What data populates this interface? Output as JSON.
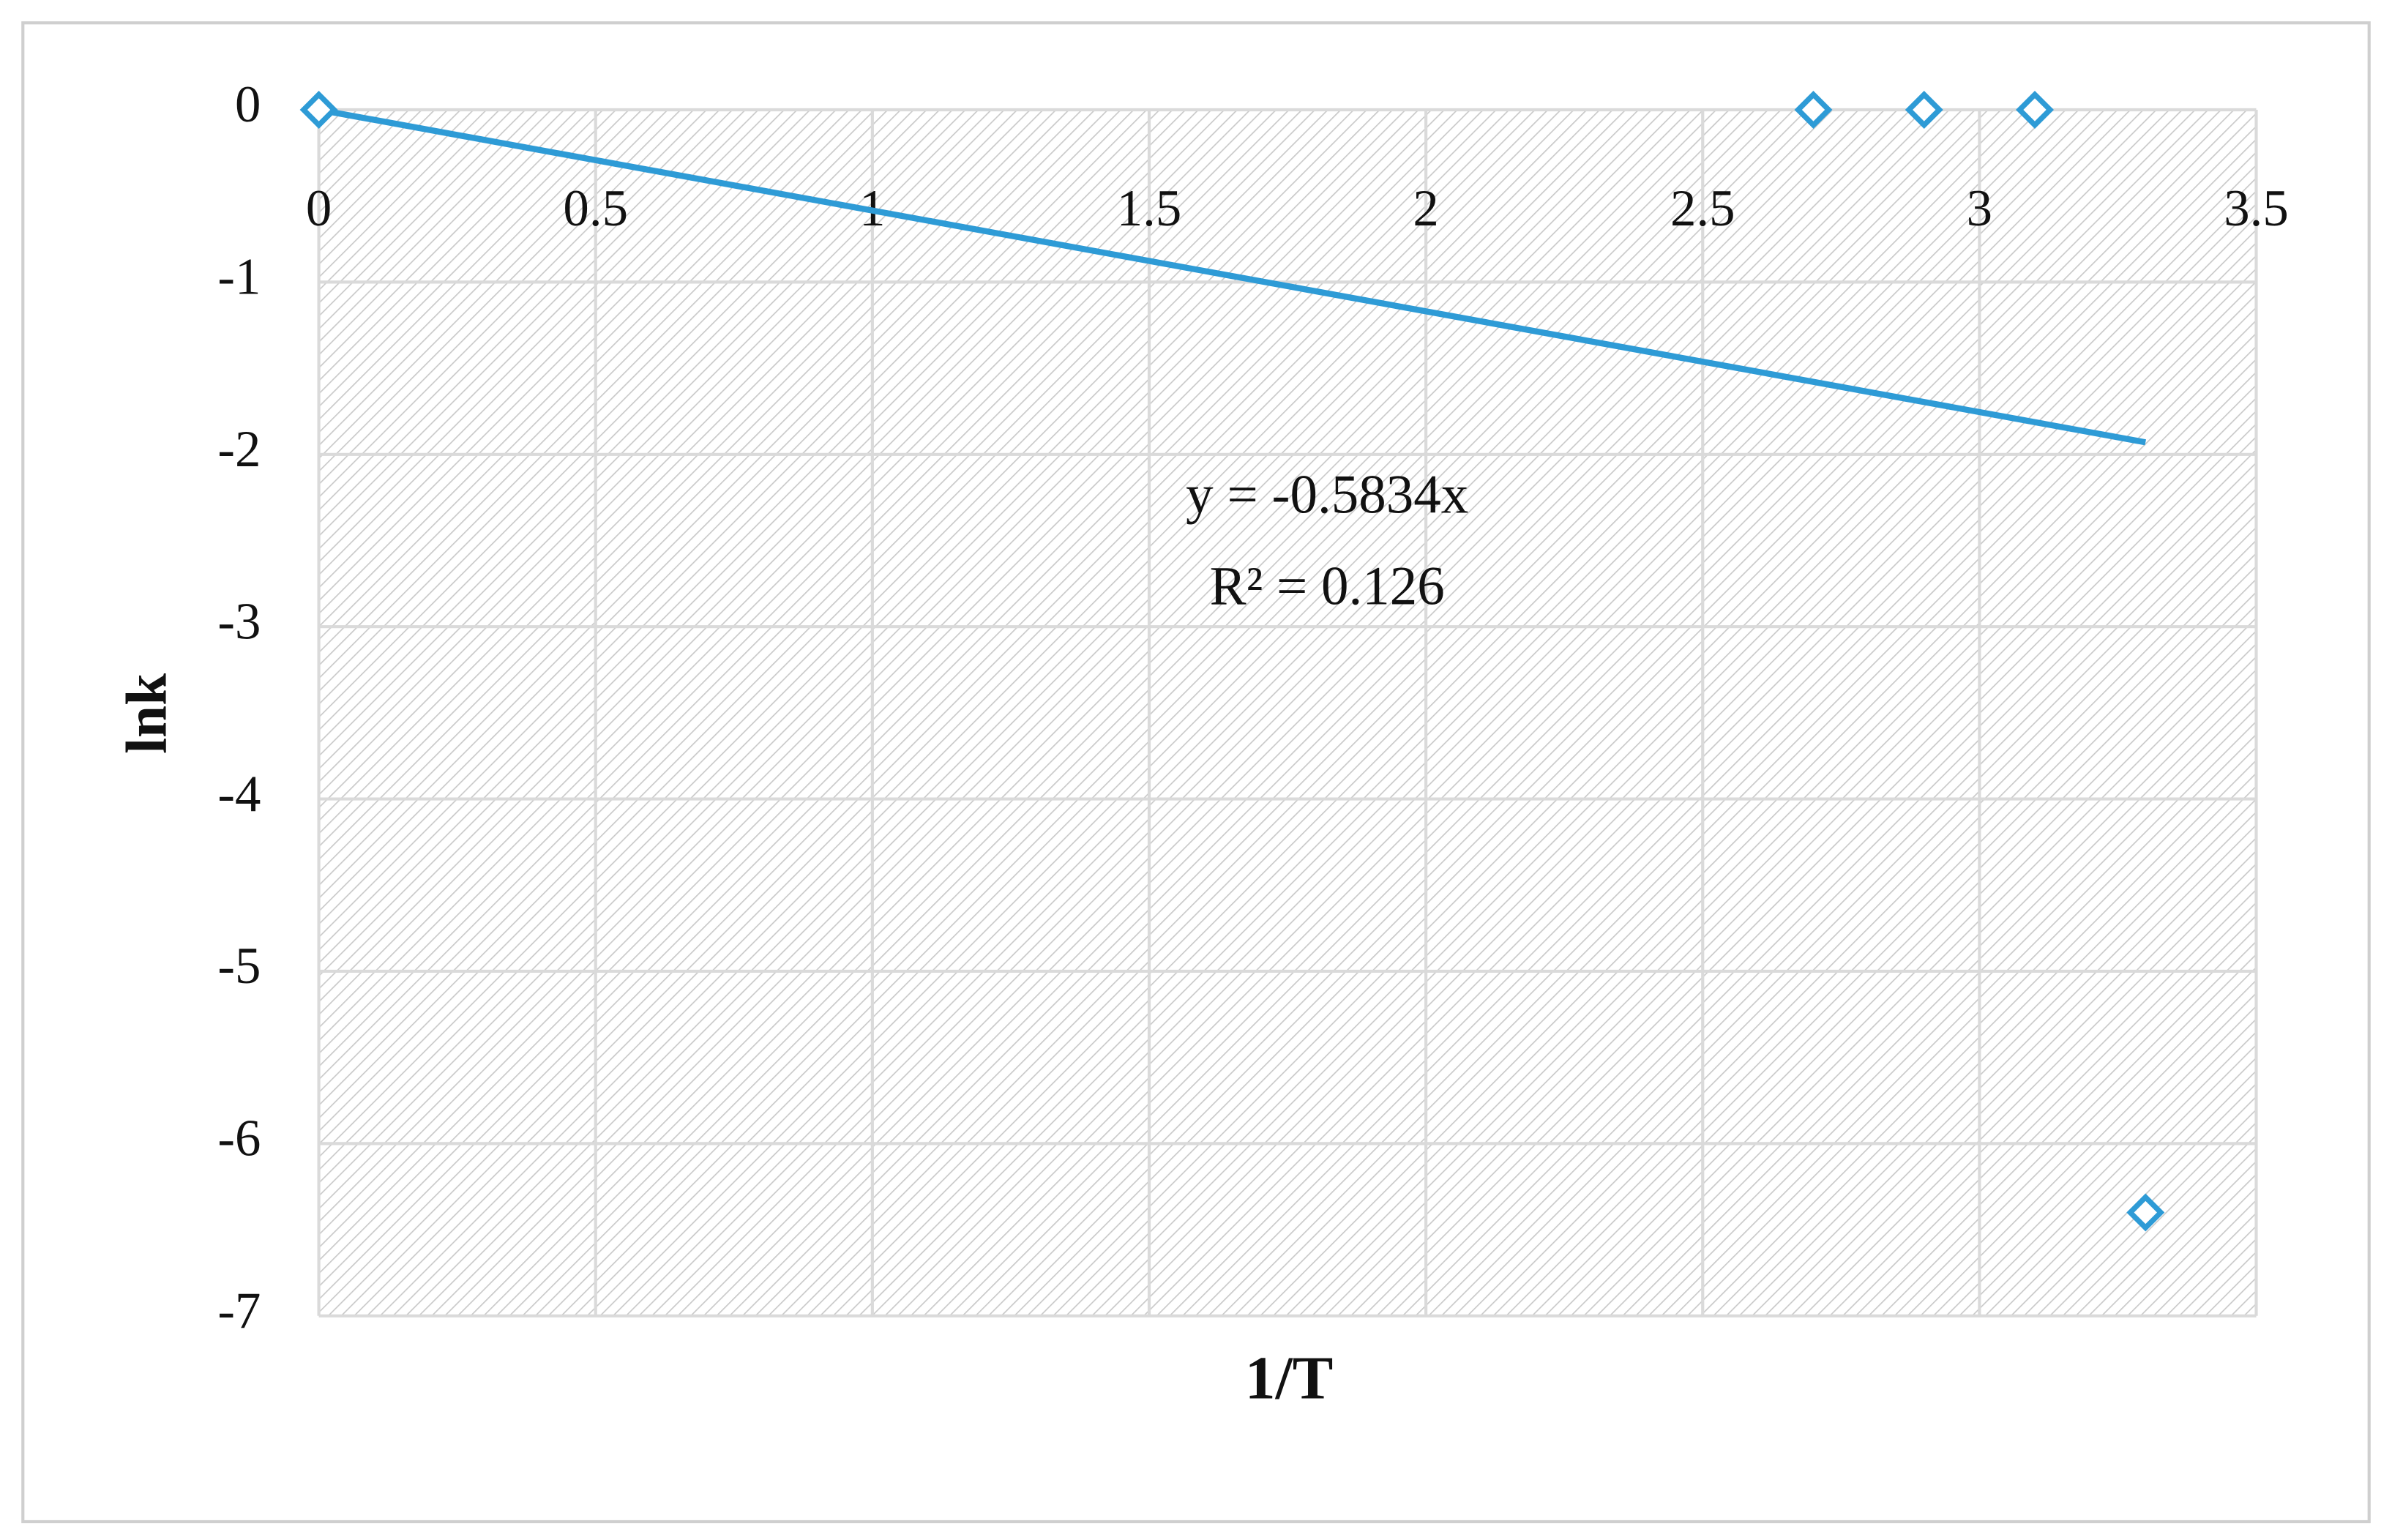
{
  "chart_data": {
    "type": "scatter",
    "x_label": "1/T",
    "y_label": "lnk",
    "series": [
      {
        "color": "#2e9bd6",
        "x": [
          0,
          2.7,
          2.9,
          3.1,
          3.3
        ],
        "values": [
          0,
          0,
          0,
          0,
          -6.4
        ]
      }
    ],
    "trendline": {
      "color": "#2e9bd6",
      "x": [
        0,
        3.3
      ],
      "values": [
        0,
        -1.93
      ]
    },
    "annotations": [
      "y = -0.5834x",
      "R² = 0.126"
    ],
    "xlim": [
      0,
      3.5
    ],
    "xticks": [
      0,
      0.5,
      1,
      1.5,
      2,
      2.5,
      3,
      3.5
    ],
    "ylim": [
      -7,
      0
    ],
    "yticks": [
      0,
      -1,
      -2,
      -3,
      -4,
      -5,
      -6,
      -7
    ],
    "grid": true
  }
}
